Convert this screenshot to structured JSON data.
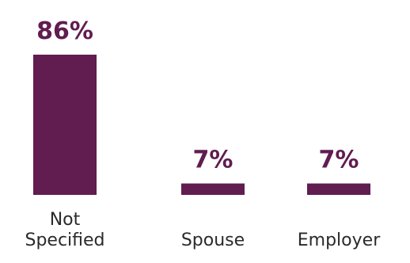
{
  "chart_data": {
    "type": "bar",
    "categories": [
      [
        "Not",
        "Specified"
      ],
      [
        "Spouse"
      ],
      [
        "Employer"
      ]
    ],
    "values": [
      86,
      7,
      7
    ],
    "value_labels": [
      "86%",
      "7%",
      "7%"
    ],
    "ylim": [
      0,
      86
    ],
    "colors": {
      "bar": "#611c50",
      "label": "#611c50",
      "category_text": "#2a2a2a",
      "background": "#ffffff"
    },
    "grid": false,
    "legend": "none"
  }
}
